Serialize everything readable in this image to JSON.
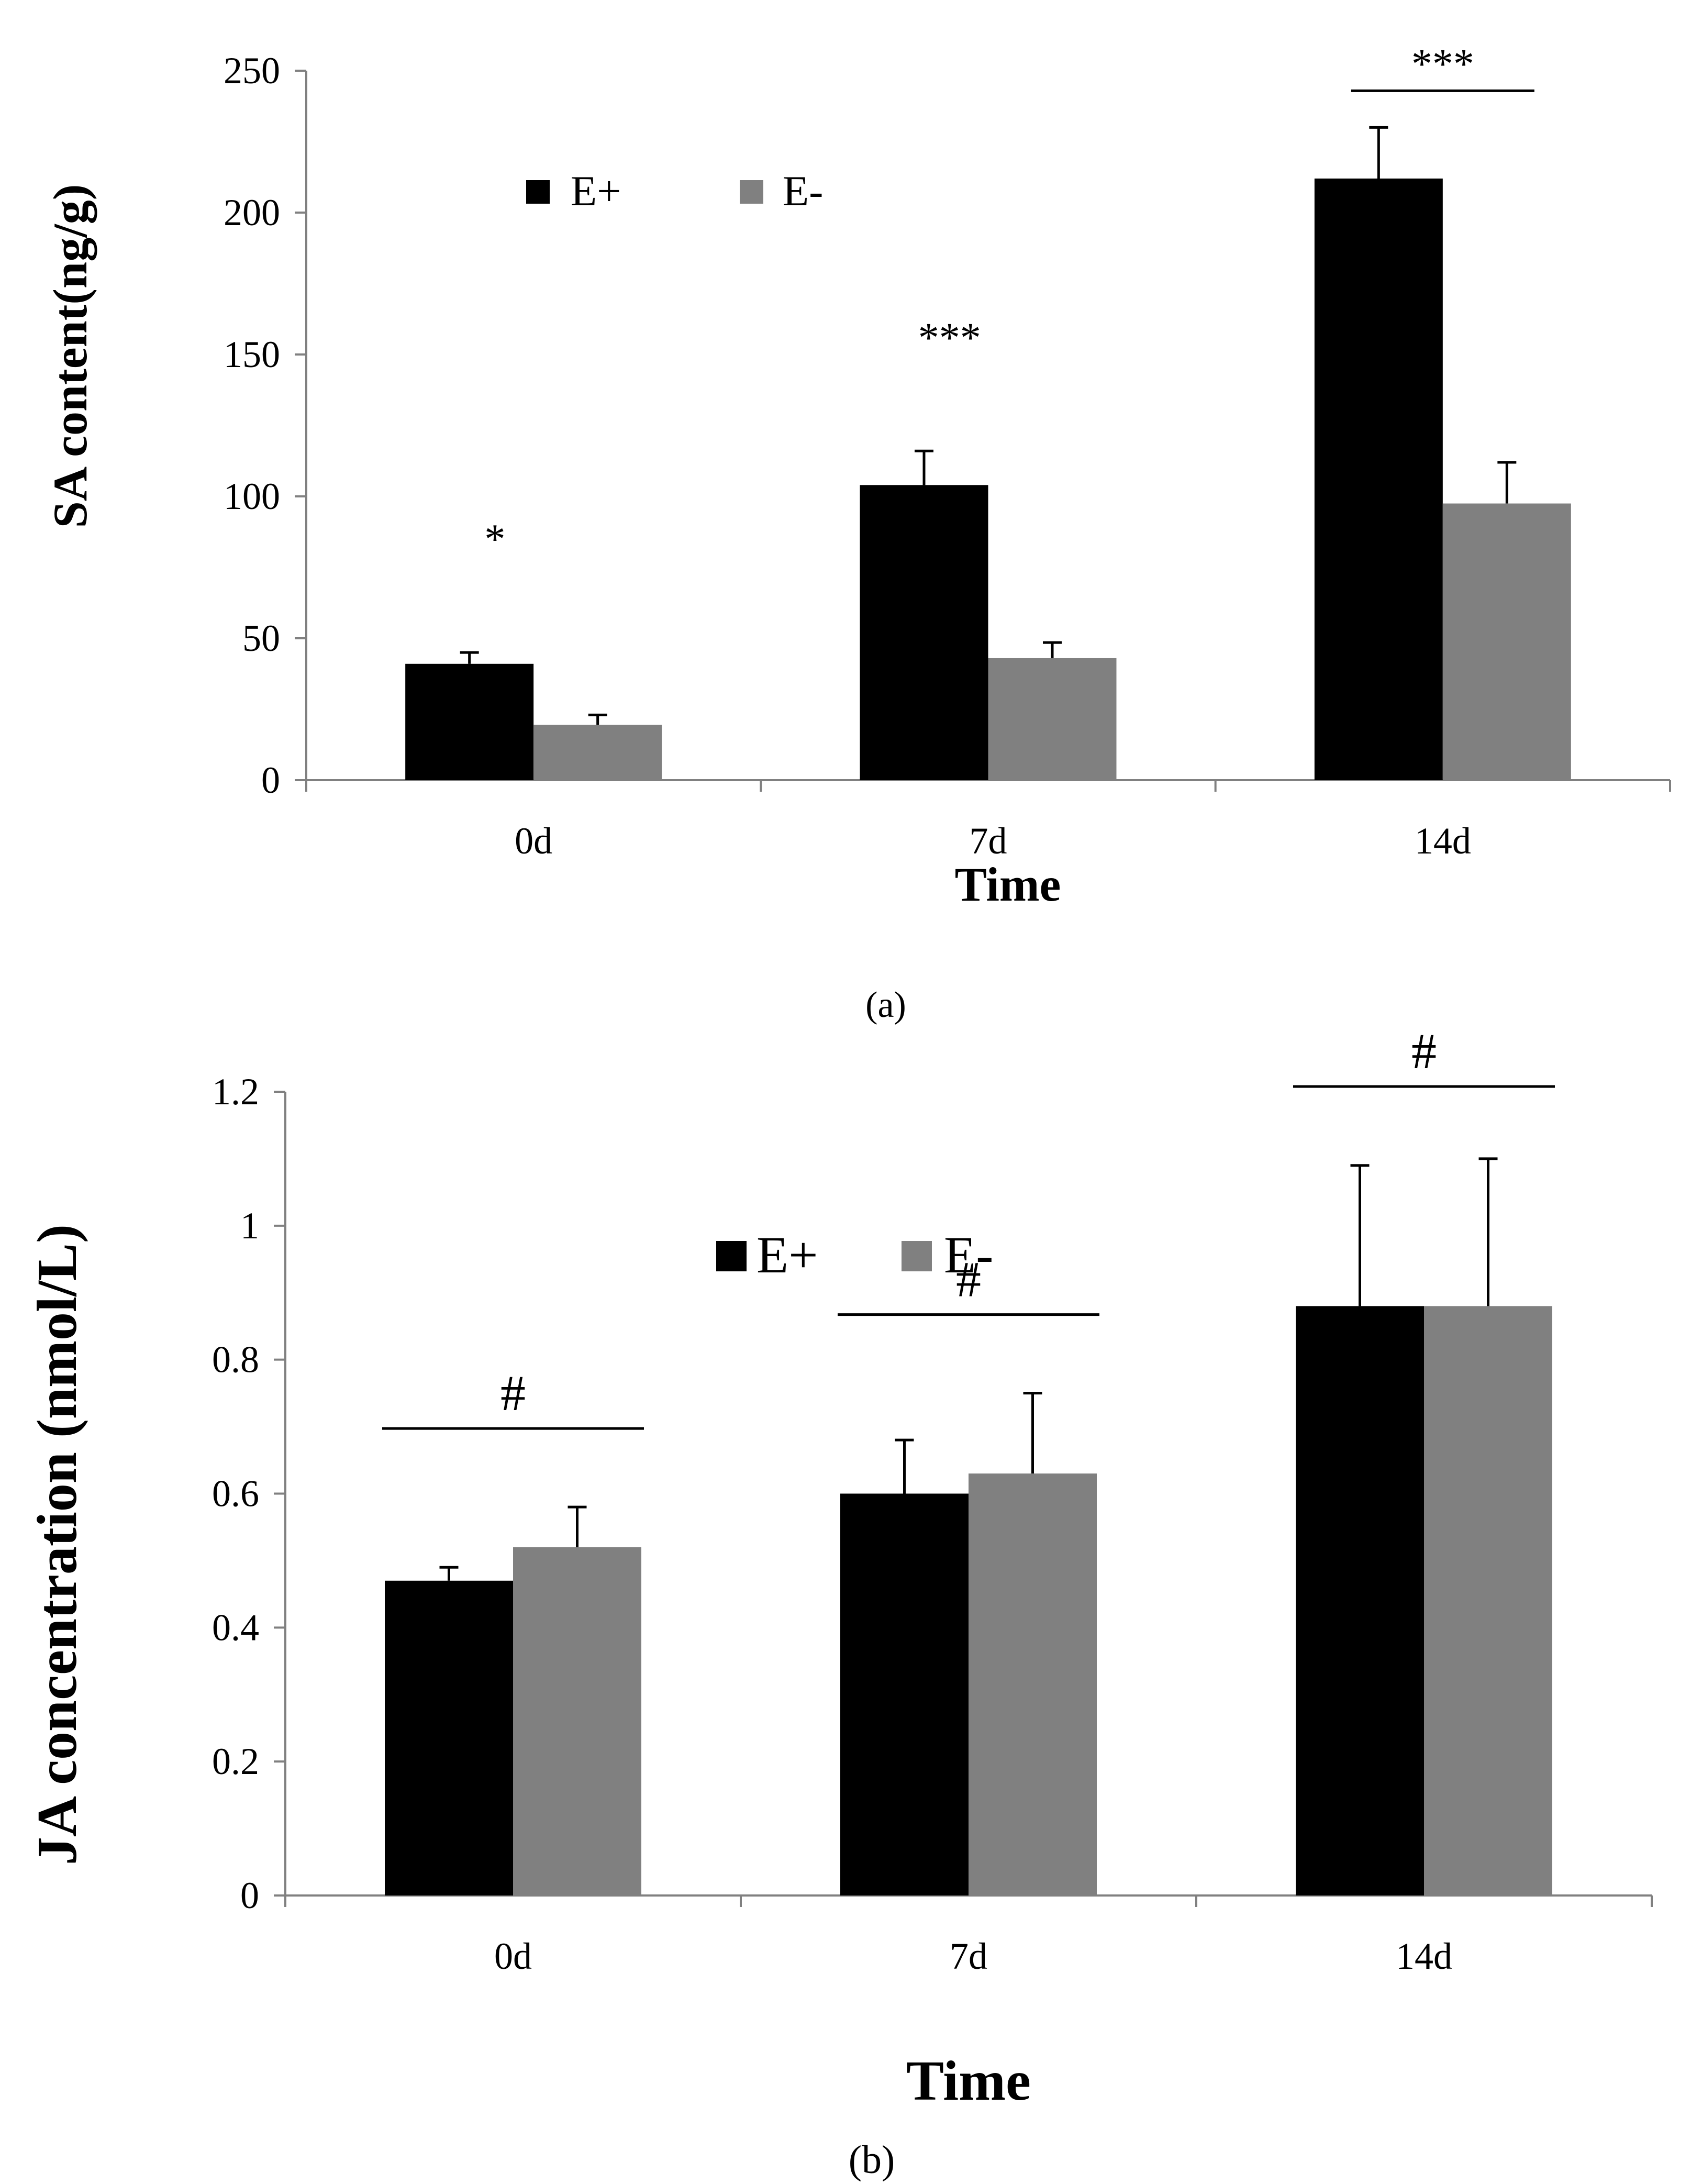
{
  "chart_data": [
    {
      "type": "bar",
      "panel_label": "(a)",
      "xlabel": "Time",
      "ylabel": "SA content(ng/g)",
      "categories": [
        "0d",
        "7d",
        "14d"
      ],
      "ylim": [
        0,
        250
      ],
      "yticks": [
        "0",
        "50",
        "100",
        "150",
        "200",
        "250"
      ],
      "ytick_values": [
        0,
        50,
        100,
        150,
        200,
        250
      ],
      "series": [
        {
          "name": "E+",
          "values": [
            41,
            104,
            212
          ],
          "errors": [
            4,
            12,
            18
          ],
          "color": "#000000"
        },
        {
          "name": "E-",
          "values": [
            19.5,
            43,
            97.5
          ],
          "errors": [
            3.5,
            5.5,
            14.5
          ],
          "color": "#808080"
        }
      ],
      "legend_position": "top-left",
      "significance": [
        {
          "category": "0d",
          "text": "*",
          "bracket": false
        },
        {
          "category": "7d",
          "text": "***",
          "bracket": false
        },
        {
          "category": "14d",
          "text": "***",
          "bracket": true
        }
      ],
      "grid": false
    },
    {
      "type": "bar",
      "panel_label": "(b)",
      "xlabel": "Time",
      "ylabel": "JA concentration (nmol/L)",
      "categories": [
        "0d",
        "7d",
        "14d"
      ],
      "ylim": [
        0,
        1.2
      ],
      "yticks": [
        "0",
        "0.2",
        "0.4",
        "0.6",
        "0.8",
        "1",
        "1.2"
      ],
      "ytick_values": [
        0,
        0.2,
        0.4,
        0.6,
        0.8,
        1.0,
        1.2
      ],
      "series": [
        {
          "name": "E+",
          "values": [
            0.47,
            0.6,
            0.88
          ],
          "errors": [
            0.02,
            0.08,
            0.21
          ],
          "color": "#000000"
        },
        {
          "name": "E-",
          "values": [
            0.52,
            0.63,
            0.88
          ],
          "errors": [
            0.06,
            0.12,
            0.22
          ],
          "color": "#808080"
        }
      ],
      "legend_position": "top-center",
      "significance": [
        {
          "category": "0d",
          "text": "#",
          "bracket": true
        },
        {
          "category": "7d",
          "text": "#",
          "bracket": true
        },
        {
          "category": "14d",
          "text": "#",
          "bracket": true
        }
      ],
      "grid": false
    }
  ]
}
